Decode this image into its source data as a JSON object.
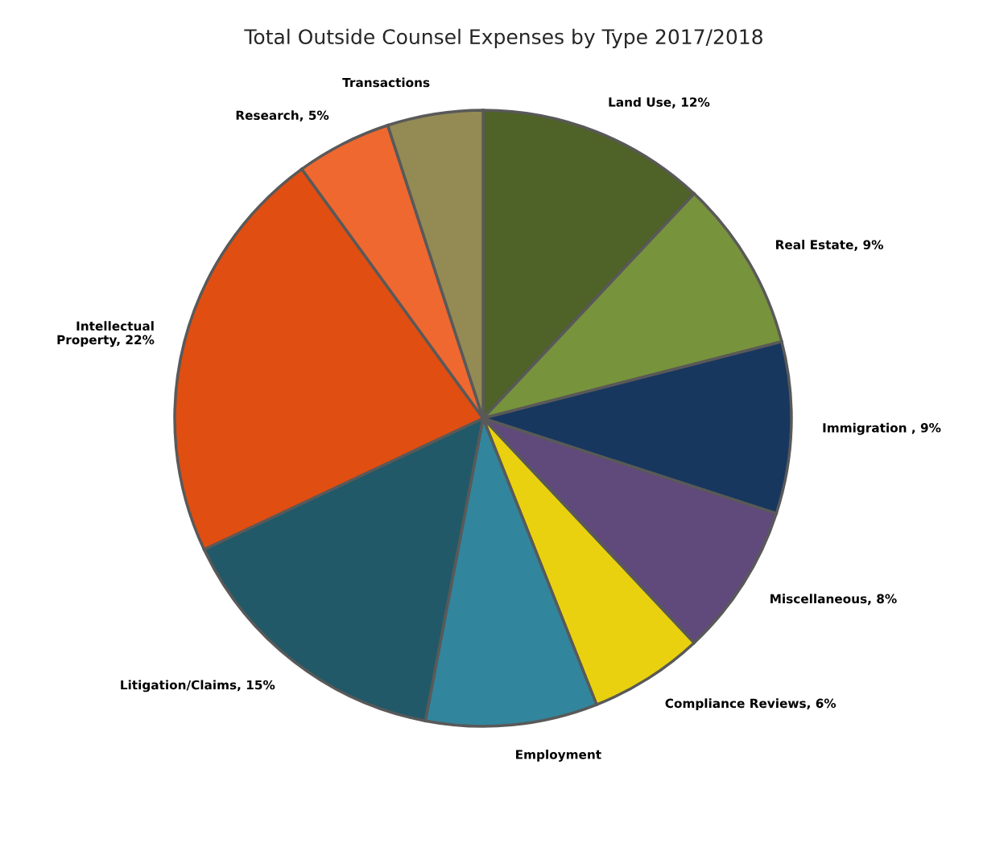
{
  "chart_data": {
    "type": "pie",
    "title": "Total Outside Counsel Expenses by Type 2017/2018",
    "categories": [
      "Land Use",
      "Real Estate",
      "Immigration ",
      "Miscellaneous",
      "Compliance Reviews",
      "Employment",
      "Litigation/Claims",
      "Intellectual Property",
      "Research",
      "Transactions"
    ],
    "values": [
      12,
      9,
      9,
      8,
      6,
      9,
      15,
      22,
      5,
      5
    ],
    "value_labels": [
      "12%",
      "9%",
      "9%",
      "8%",
      "6%",
      null,
      "15%",
      "22%",
      "5%",
      null
    ],
    "colors": [
      "#4f6228",
      "#77933c",
      "#17375e",
      "#604a7b",
      "#e9d10f",
      "#31859c",
      "#215968",
      "#e04e12",
      "#ee6830",
      "#948a54"
    ]
  }
}
